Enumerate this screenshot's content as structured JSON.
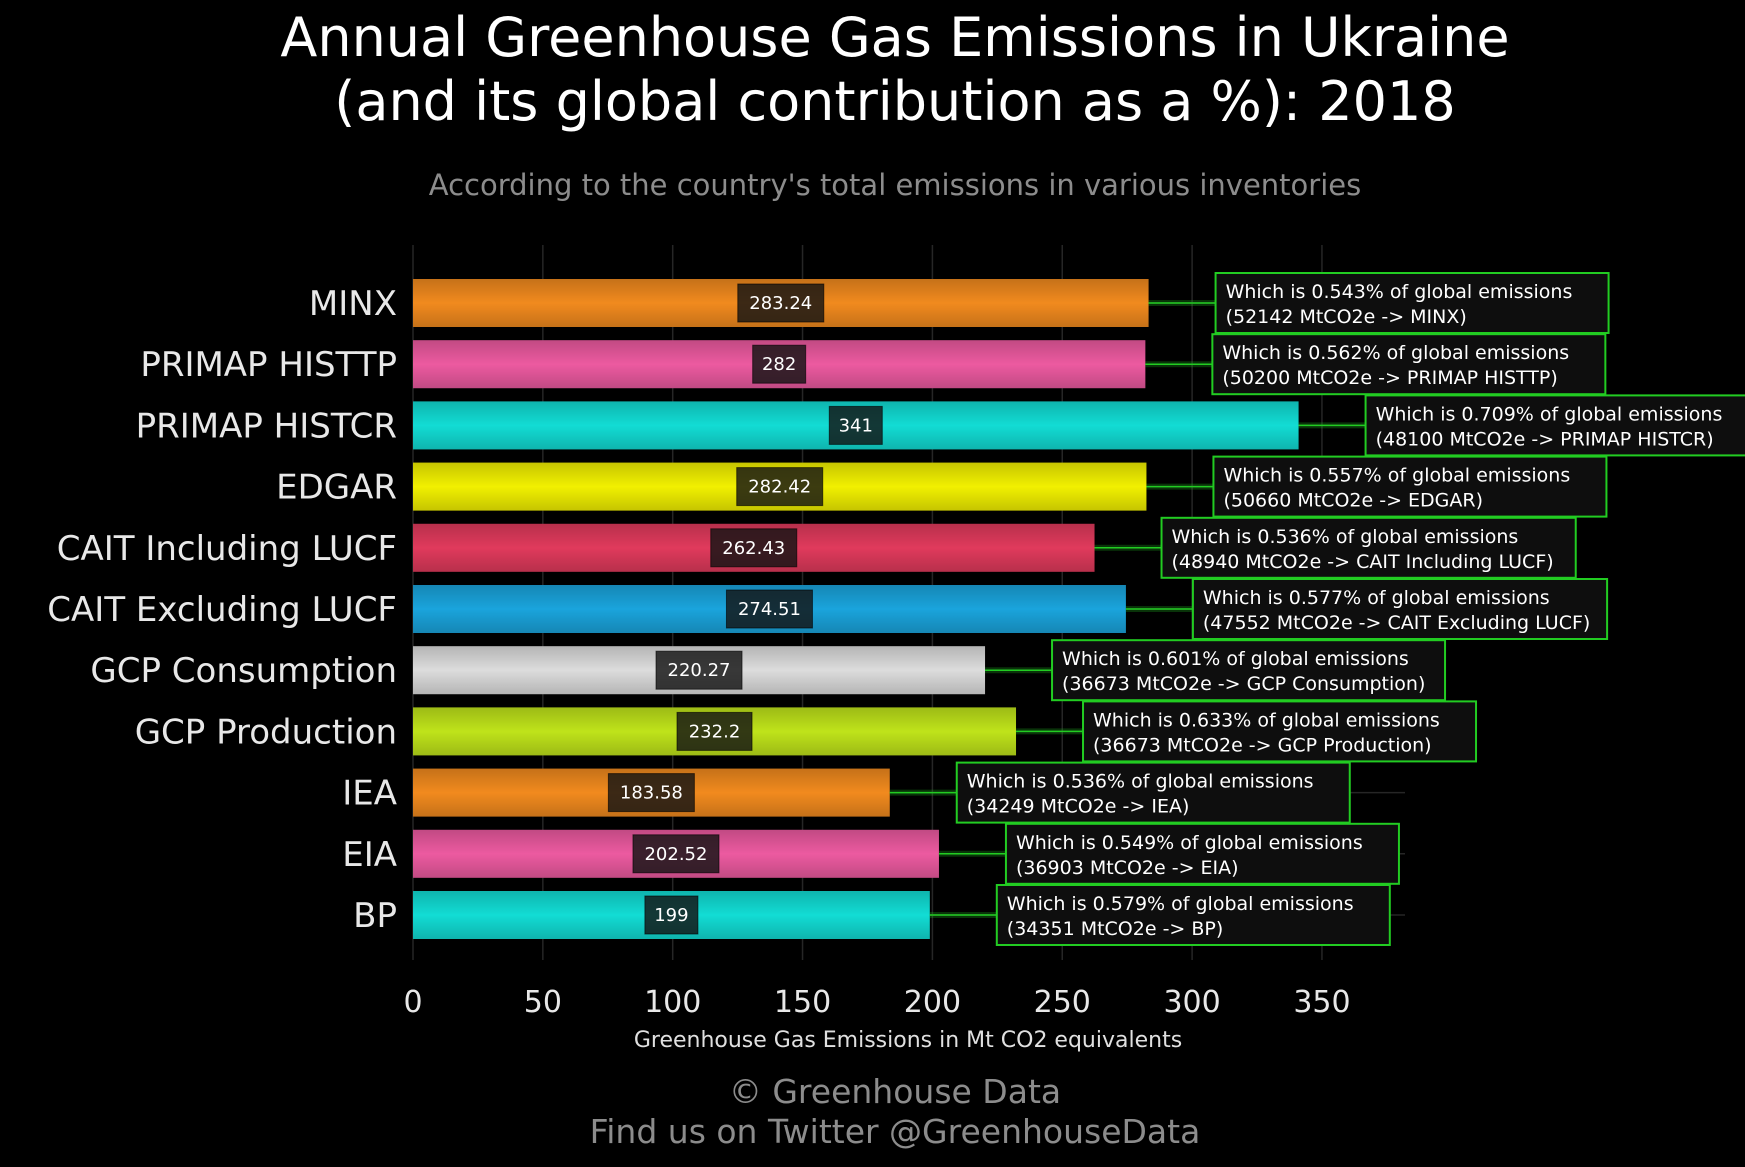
{
  "page": {
    "title_line1": "Annual Greenhouse Gas Emissions in Ukraine",
    "title_line2": "(and its global contribution as a %): 2018",
    "subtitle": "According to the country's total emissions in various inventories",
    "footer_line1": "© Greenhouse Data",
    "footer_line2": "Find us on Twitter @GreenhouseData"
  },
  "chart_data": {
    "type": "bar",
    "orientation": "horizontal",
    "title": "Annual Greenhouse Gas Emissions in Ukraine (and its global contribution as a %): 2018",
    "subtitle": "According to the country's total emissions in various inventories",
    "xlabel": "Greenhouse Gas Emissions in Mt CO2 equivalents",
    "ylabel": "",
    "xlim": [
      0,
      383
    ],
    "xticks": [
      0,
      50,
      100,
      150,
      200,
      250,
      300,
      350
    ],
    "grid": true,
    "categories": [
      "MINX",
      "PRIMAP HISTTP",
      "PRIMAP HISTCR",
      "EDGAR",
      "CAIT Including LUCF",
      "CAIT Excluding LUCF",
      "GCP Consumption",
      "GCP Production",
      "IEA",
      "EIA",
      "BP"
    ],
    "values": [
      283.24,
      282,
      341,
      282.42,
      262.43,
      274.51,
      220.27,
      232.2,
      183.58,
      202.52,
      199
    ],
    "value_labels": [
      "283.24",
      "282",
      "341",
      "282.42",
      "262.43",
      "274.51",
      "220.27",
      "232.2",
      "183.58",
      "202.52",
      "199"
    ],
    "colors": [
      "#f18a1e",
      "#ec5aa0",
      "#12dcd4",
      "#f1f000",
      "#e03a5c",
      "#1aa4dc",
      "#dcdcdc",
      "#bfe31a",
      "#f18a1e",
      "#ec5aa0",
      "#12dcd4"
    ],
    "annotations": [
      {
        "line1": "Which is 0.543% of global emissions",
        "line2": "(52142 MtCO2e -> MINX)"
      },
      {
        "line1": "Which is 0.562% of global emissions",
        "line2": "(50200 MtCO2e -> PRIMAP HISTTP)"
      },
      {
        "line1": "Which is 0.709% of global emissions",
        "line2": "(48100 MtCO2e -> PRIMAP HISTCR)"
      },
      {
        "line1": "Which is 0.557% of global emissions",
        "line2": "(50660 MtCO2e -> EDGAR)"
      },
      {
        "line1": "Which is 0.536% of global emissions",
        "line2": "(48940 MtCO2e -> CAIT Including LUCF)"
      },
      {
        "line1": "Which is 0.577% of global emissions",
        "line2": "(47552 MtCO2e -> CAIT Excluding LUCF)"
      },
      {
        "line1": "Which is 0.601% of global emissions",
        "line2": "(36673 MtCO2e -> GCP Consumption)"
      },
      {
        "line1": "Which is 0.633% of global emissions",
        "line2": "(36673 MtCO2e -> GCP Production)"
      },
      {
        "line1": "Which is 0.536% of global emissions",
        "line2": "(34249 MtCO2e -> IEA)"
      },
      {
        "line1": "Which is 0.549% of global emissions",
        "line2": "(36903 MtCO2e -> EIA)"
      },
      {
        "line1": "Which is 0.579% of global emissions",
        "line2": "(34351 MtCO2e -> BP)"
      }
    ],
    "annotation_border_color": "#22cc22",
    "background_color": "#000000"
  }
}
